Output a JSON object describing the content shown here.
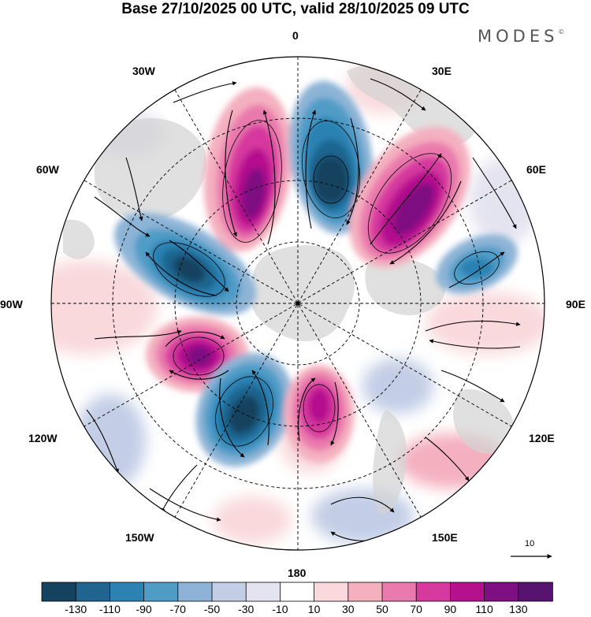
{
  "title": "Base 27/10/2025 00 UTC, valid 28/10/2025 09 UTC",
  "brand": {
    "name": "MODES",
    "mark": "©"
  },
  "longitude_labels": {
    "lon_0": "0",
    "lon_30E": "30E",
    "lon_60E": "60E",
    "lon_90E": "90E",
    "lon_120E": "120E",
    "lon_150E": "150E",
    "lon_180": "180",
    "lon_150W": "150W",
    "lon_120W": "120W",
    "lon_90W": "90W",
    "lon_60W": "60W",
    "lon_30W": "30W"
  },
  "vector_reference": {
    "value": "10"
  },
  "colorbar": {
    "colors": [
      "#15425f",
      "#1f6590",
      "#2b82b3",
      "#4f9cc7",
      "#8db4d6",
      "#c3cee6",
      "#e4e3f0",
      "#ffffff",
      "#f9d9dc",
      "#f4b0bf",
      "#ea79ad",
      "#d6399e",
      "#b5118e",
      "#7e0e82",
      "#561470"
    ],
    "labels": [
      "-130",
      "-110",
      "-90",
      "-70",
      "-50",
      "-30",
      "-10",
      "10",
      "30",
      "50",
      "70",
      "90",
      "110",
      "130"
    ]
  }
}
